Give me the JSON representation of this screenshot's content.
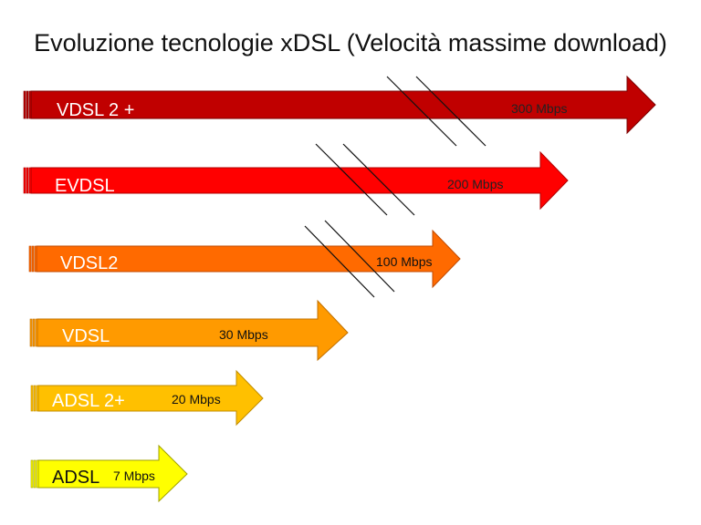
{
  "title": "Evoluzione tecnologie xDSL (Velocità massime download)",
  "technologies": [
    {
      "name": "VDSL 2 +",
      "speed": "300 Mbps",
      "color": "#c00000",
      "border": "#7a0000",
      "name_color": "#ffffff",
      "speed_color": "#222222"
    },
    {
      "name": "EVDSL",
      "speed": "200 Mbps",
      "color": "#ff0000",
      "border": "#b00000",
      "name_color": "#ffffff",
      "speed_color": "#222222"
    },
    {
      "name": "VDSL2",
      "speed": "100 Mbps",
      "color": "#ff6a00",
      "border": "#c04a00",
      "name_color": "#ffffff",
      "speed_color": "#111111"
    },
    {
      "name": "VDSL",
      "speed": "30 Mbps",
      "color": "#ff9a00",
      "border": "#c07000",
      "name_color": "#ffffff",
      "speed_color": "#111111"
    },
    {
      "name": "ADSL 2+",
      "speed": "20 Mbps",
      "color": "#ffc000",
      "border": "#c08c00",
      "name_color": "#ffffff",
      "speed_color": "#111111"
    },
    {
      "name": "ADSL",
      "speed": "7 Mbps",
      "color": "#ffff00",
      "border": "#a0a000",
      "name_color": "#111111",
      "speed_color": "#111111"
    }
  ]
}
